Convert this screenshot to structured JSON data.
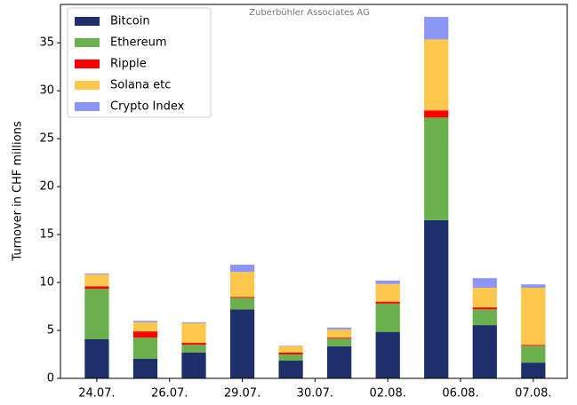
{
  "chart_data": {
    "type": "stacked_bar",
    "title": "Zuberbühler Associates AG",
    "ylabel": "Turnover in CHF millions",
    "x": [
      0,
      1,
      2,
      3,
      4,
      5,
      6,
      7,
      8,
      9
    ],
    "xlim": [
      -0.75,
      9.7
    ],
    "xticks": [
      {
        "value": 0,
        "label": "24.07."
      },
      {
        "value": 1.5,
        "label": "26.07."
      },
      {
        "value": 3,
        "label": "29.07."
      },
      {
        "value": 4.5,
        "label": "30.07."
      },
      {
        "value": 6,
        "label": "02.08."
      },
      {
        "value": 7.5,
        "label": "06.08."
      },
      {
        "value": 9,
        "label": "07.08."
      }
    ],
    "ylim": [
      0,
      39
    ],
    "yticks": [
      0,
      5,
      10,
      15,
      20,
      25,
      30,
      35
    ],
    "legend": "upper left",
    "series": [
      {
        "name": "Bitcoin",
        "color": "#1f2f6b",
        "values": [
          4.1,
          2.05,
          2.7,
          7.2,
          1.85,
          3.35,
          4.85,
          16.5,
          5.55,
          1.65
        ]
      },
      {
        "name": "Ethereum",
        "color": "#6ab04c",
        "values": [
          5.25,
          2.2,
          0.8,
          1.2,
          0.65,
          0.8,
          2.95,
          10.7,
          1.65,
          1.75
        ]
      },
      {
        "name": "Ripple",
        "color": "#ff0000",
        "values": [
          0.25,
          0.65,
          0.2,
          0.1,
          0.2,
          0.1,
          0.2,
          0.75,
          0.2,
          0.1
        ]
      },
      {
        "name": "Solana etc",
        "color": "#fcc74a",
        "values": [
          1.25,
          0.95,
          2.05,
          2.6,
          0.65,
          0.85,
          1.85,
          7.4,
          2.05,
          5.95
        ]
      },
      {
        "name": "Crypto Index",
        "color": "#8c96f7",
        "values": [
          0.1,
          0.15,
          0.1,
          0.75,
          0.05,
          0.2,
          0.35,
          2.35,
          1.0,
          0.35
        ]
      }
    ]
  }
}
